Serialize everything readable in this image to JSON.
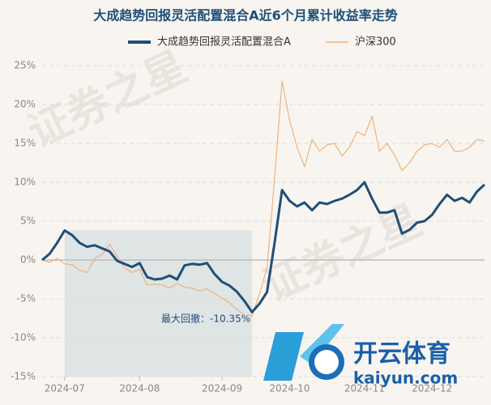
{
  "chart_data": {
    "type": "line",
    "title": "大成趋势回报灵活配置混合A近6个月累计收益率走势",
    "annotation": "最大回撤：-10.35%",
    "watermark": [
      "证券之星",
      "开云体育",
      "kaiyun.com"
    ],
    "categories": [
      null,
      null,
      null,
      "2024-07",
      null,
      null,
      null,
      null,
      null,
      null,
      null,
      null,
      null,
      "2024-08",
      null,
      null,
      null,
      null,
      null,
      null,
      null,
      null,
      null,
      null,
      "2024-09",
      null,
      null,
      null,
      null,
      null,
      null,
      null,
      null,
      "2024-10",
      null,
      null,
      null,
      null,
      null,
      null,
      null,
      null,
      null,
      "2024-11",
      null,
      null,
      null,
      null,
      null,
      null,
      null,
      null,
      "2024-12",
      null,
      null,
      null,
      null,
      null,
      null,
      null
    ],
    "ylim": [
      -15,
      25
    ],
    "yticks": [
      {
        "value": -15,
        "label": "-15%"
      },
      {
        "value": -10,
        "label": "-10%"
      },
      {
        "value": -5,
        "label": "-5%"
      },
      {
        "value": 0,
        "label": "0%"
      },
      {
        "value": 5,
        "label": "5%"
      },
      {
        "value": 10,
        "label": "10%"
      },
      {
        "value": 15,
        "label": "15%"
      },
      {
        "value": 20,
        "label": "20%"
      },
      {
        "value": 25,
        "label": "25%"
      }
    ],
    "grid": true,
    "legend": "top",
    "series": [
      {
        "name": "大成趋势回报灵活配置混合A",
        "color": "#1f4e79",
        "values": [
          0,
          0.8,
          2.2,
          3.8,
          3.2,
          2.2,
          1.7,
          1.9,
          1.5,
          1.1,
          -0.1,
          -0.5,
          -0.9,
          -0.4,
          -2.2,
          -2.5,
          -2.4,
          -2.0,
          -2.5,
          -0.7,
          -0.5,
          -0.6,
          -0.4,
          -1.8,
          -2.8,
          -3.3,
          -4.1,
          -5.3,
          -6.7,
          -5.6,
          -4.1,
          2.2,
          9.0,
          7.6,
          6.9,
          7.4,
          6.4,
          7.4,
          7.2,
          7.6,
          7.9,
          8.4,
          9.0,
          10.0,
          7.9,
          6.1,
          6.1,
          6.4,
          3.4,
          3.9,
          4.8,
          5.0,
          5.8,
          7.2,
          8.4,
          7.6,
          8.0,
          7.4,
          8.8,
          9.7
        ]
      },
      {
        "name": "沪深300",
        "color": "#f0b27a",
        "values": [
          0,
          -0.3,
          0.2,
          -0.5,
          -0.6,
          -1.3,
          -1.6,
          0.2,
          0.7,
          2.0,
          0.5,
          -1.0,
          -1.6,
          -1.2,
          -3.2,
          -3.1,
          -3.2,
          -3.6,
          -3.0,
          -3.5,
          -3.6,
          -4.0,
          -3.7,
          -4.3,
          -4.9,
          -5.5,
          -6.4,
          -7.1,
          -7.2,
          -4.3,
          -1.0,
          10.5,
          23.0,
          18.0,
          14.5,
          12.0,
          15.5,
          14.0,
          14.8,
          15.0,
          13.4,
          14.5,
          16.5,
          16.0,
          18.5,
          14.0,
          15.0,
          13.5,
          11.5,
          12.5,
          14.0,
          14.8,
          15.0,
          14.5,
          15.5,
          14.0,
          14.0,
          14.5,
          15.5,
          15.3
        ]
      }
    ]
  }
}
